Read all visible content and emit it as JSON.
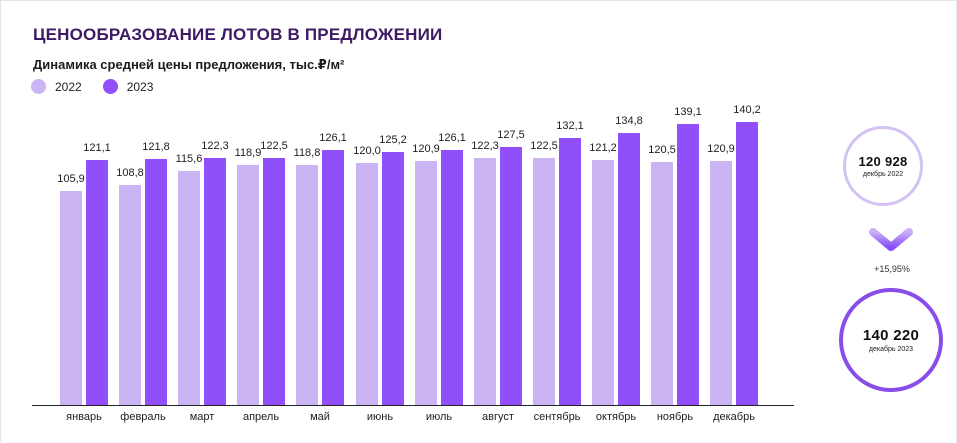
{
  "header": {
    "title": "ЦЕНООБРАЗОВАНИЕ ЛОТОВ В ПРЕДЛОЖЕНИИ",
    "subtitle": "Динамика средней цены предложения, тыс.₽/м²"
  },
  "legend": [
    {
      "label": "2022",
      "color": "#cab4f3"
    },
    {
      "label": "2023",
      "color": "#904ffb"
    }
  ],
  "chart_data": {
    "type": "bar",
    "title": "Динамика средней цены предложения, тыс.₽/м²",
    "xlabel": "",
    "ylabel": "тыс.₽/м²",
    "categories": [
      "январь",
      "февраль",
      "март",
      "апрель",
      "май",
      "июнь",
      "июль",
      "август",
      "сентябрь",
      "октябрь",
      "ноябрь",
      "декабрь"
    ],
    "series": [
      {
        "name": "2022",
        "color": "#cab4f3",
        "values": [
          105.9,
          108.8,
          115.6,
          118.9,
          118.8,
          120.0,
          120.9,
          122.3,
          122.5,
          121.2,
          120.5,
          120.9
        ],
        "labels": [
          "105,9",
          "108,8",
          "115,6",
          "118,9",
          "118,8",
          "120,0",
          "120,9",
          "122,3",
          "122,5",
          "121,2",
          "120,5",
          "120,9"
        ]
      },
      {
        "name": "2023",
        "color": "#904ffb",
        "values": [
          121.1,
          121.8,
          122.3,
          122.5,
          126.1,
          125.2,
          126.1,
          127.5,
          132.1,
          134.8,
          139.1,
          140.2
        ],
        "labels": [
          "121,1",
          "121,8",
          "122,3",
          "122,5",
          "126,1",
          "125,2",
          "126,1",
          "127,5",
          "132,1",
          "134,8",
          "139,1",
          "140,2"
        ]
      }
    ],
    "ylim": [
      0,
      145
    ],
    "grid": false,
    "legend_position": "top-left",
    "data_labels": true
  },
  "summary": {
    "start": {
      "value": "120 928",
      "caption": "декбрь 2022"
    },
    "change": "+15,95%",
    "end": {
      "value": "140 220",
      "caption": "декабрь 2023"
    },
    "icon": "chevron-down-icon"
  }
}
